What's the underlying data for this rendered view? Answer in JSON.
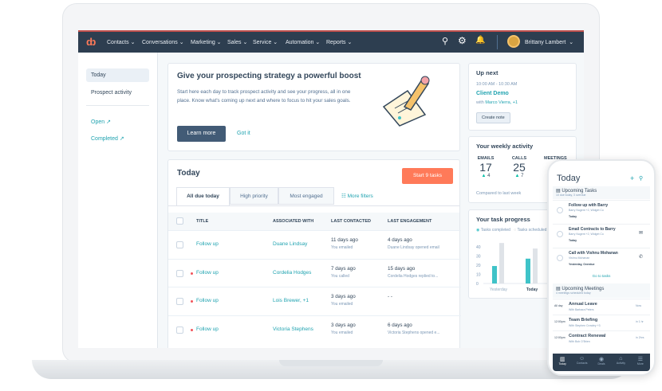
{
  "nav": {
    "items": [
      "Contacts",
      "Conversations",
      "Marketing",
      "Sales",
      "Service",
      "Automation",
      "Reports"
    ],
    "user": "Brittany Lambert",
    "brand_color": "#ff7a59",
    "bar_color": "#2d3e50"
  },
  "sidebar": {
    "items": [
      "Today",
      "Prospect activity"
    ],
    "links": [
      "Open",
      "Completed"
    ]
  },
  "promo": {
    "title": "Give your prospecting strategy a powerful boost",
    "body": "Start here each day to track prospect activity and see your progress, all in one place. Know what's coming up next and where to focus to hit your sales goals.",
    "learn_more": "Learn more",
    "got_it": "Got it"
  },
  "today": {
    "title": "Today",
    "start_button": "Start 9 tasks",
    "tabs": [
      "All due today",
      "High priority",
      "Most engaged"
    ],
    "more_filters": "More filters",
    "columns": [
      "TITLE",
      "ASSOCIATED WITH",
      "LAST CONTACTED",
      "LAST ENGAGEMENT"
    ],
    "rows": [
      {
        "title": "Follow up",
        "overdue": false,
        "assoc": "Duane Lindsay",
        "contacted": "11 days ago",
        "contacted_sub": "You emailed",
        "engagement": "4 days ago",
        "engagement_sub": "Duane Lindsay opened email"
      },
      {
        "title": "Follow up",
        "overdue": true,
        "assoc": "Cordelia Hodges",
        "contacted": "7 days ago",
        "contacted_sub": "You called",
        "engagement": "15 days ago",
        "engagement_sub": "Cordelia Hodges replied to..."
      },
      {
        "title": "Follow up",
        "overdue": true,
        "assoc": "Lois Brewer, +1",
        "contacted": "3 days ago",
        "contacted_sub": "You emailed",
        "engagement": "- -",
        "engagement_sub": ""
      },
      {
        "title": "Follow up",
        "overdue": true,
        "assoc": "Victoria Stephens",
        "contacted": "3 days ago",
        "contacted_sub": "You emailed",
        "engagement": "6 days ago",
        "engagement_sub": "Victoria Stephens opened e..."
      }
    ]
  },
  "upnext": {
    "title": "Up next",
    "time": "10:00 AM - 10:30 AM",
    "event": "Client Demo",
    "with_prefix": "with",
    "with": "Marco Vierra, +1",
    "button": "Create note"
  },
  "weekly": {
    "title": "Your weekly activity",
    "stats": [
      {
        "label": "EMAILS",
        "value": "17",
        "delta": "4"
      },
      {
        "label": "CALLS",
        "value": "25",
        "delta": "7"
      },
      {
        "label": "MEETINGS",
        "value": "",
        "delta": ""
      }
    ],
    "compare": "Compared to last week"
  },
  "progress": {
    "title": "Your task progress",
    "legend": [
      "Tasks completed",
      "Tasks scheduled"
    ],
    "chart_data": {
      "type": "bar",
      "categories": [
        "Yesterday",
        "Today"
      ],
      "series": [
        {
          "name": "Tasks completed",
          "values": [
            19,
            27
          ],
          "color": "#3fc3c8"
        },
        {
          "name": "Tasks scheduled",
          "values": [
            44,
            38
          ],
          "color": "#dfe3e8"
        }
      ],
      "yticks": [
        0,
        10,
        20,
        30,
        40
      ],
      "ylim": [
        0,
        45
      ]
    }
  },
  "phone": {
    "title": "Today",
    "tasks_header": "Upcoming Tasks",
    "tasks_sub": "10 due today, 3 overdue",
    "tasks": [
      {
        "title": "Follow up with Barry",
        "sub": "Barry Nugent +2, Widget Co",
        "due": "Today"
      },
      {
        "title": "Email Contracts to Barry",
        "sub": "Barry Nugent +2, Widget Co",
        "due": "Today"
      },
      {
        "title": "Call with Vishnu Mohanan",
        "sub": "Vishnu Mohanan",
        "due": "Yesterday, Overdue"
      }
    ],
    "go_to_tasks": "Go to tasks",
    "meetings_header": "Upcoming Meetings",
    "meetings_sub": "4 meetings scheduled today",
    "meetings": [
      {
        "time": "All day",
        "title": "Annual Leave",
        "sub": "With Barbara Peters",
        "when": "Now"
      },
      {
        "time": "12:00pm",
        "title": "Team Briefing",
        "sub": "With Stephen Crowley +3",
        "when": "in 1 hr"
      },
      {
        "time": "12:00pm",
        "title": "Contract Renewal",
        "sub": "With Bob O'Brien",
        "when": "in 2hrs"
      }
    ],
    "tabbar": [
      "Today",
      "Contacts",
      "Deals",
      "Activity",
      "More"
    ]
  }
}
